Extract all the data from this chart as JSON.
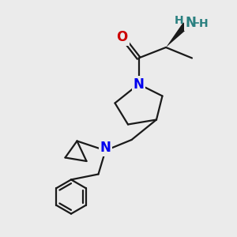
{
  "bg_color": "#ebebeb",
  "atom_colors": {
    "N": "#0000ee",
    "O": "#cc0000",
    "NH2_N": "#2a8080",
    "H": "#2a8080",
    "C": "#1a1a1a"
  },
  "bond_color": "#1a1a1a",
  "bond_lw": 1.6,
  "font_size_N": 12,
  "font_size_O": 12,
  "font_size_H": 10
}
